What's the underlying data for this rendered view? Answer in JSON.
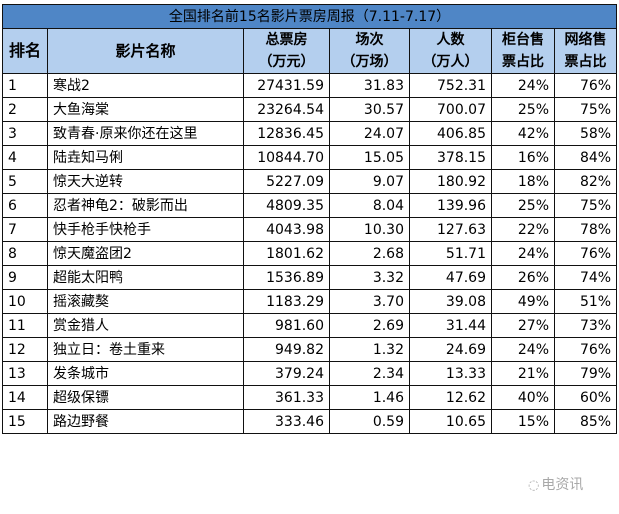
{
  "title": "全国排名前15名影片票房周报（7.11-7.17）",
  "headers": {
    "rank": "排名",
    "name": "影片名称",
    "gross_l1": "总票房",
    "gross_l2": "（万元）",
    "shows_l1": "场次",
    "shows_l2": "（万场）",
    "people_l1": "人数",
    "people_l2": "（万人）",
    "counter_l1": "柜台售",
    "counter_l2": "票占比",
    "online_l1": "网络售",
    "online_l2": "票占比"
  },
  "rows": [
    {
      "rank": "1",
      "name": "寒战2",
      "gross": "27431.59",
      "shows": "31.83",
      "people": "752.31",
      "counter": "24%",
      "online": "76%"
    },
    {
      "rank": "2",
      "name": "大鱼海棠",
      "gross": "23264.54",
      "shows": "30.57",
      "people": "700.07",
      "counter": "25%",
      "online": "75%"
    },
    {
      "rank": "3",
      "name": "致青春·原来你还在这里",
      "gross": "12836.45",
      "shows": "24.07",
      "people": "406.85",
      "counter": "42%",
      "online": "58%"
    },
    {
      "rank": "4",
      "name": "陆垚知马俐",
      "gross": "10844.70",
      "shows": "15.05",
      "people": "378.15",
      "counter": "16%",
      "online": "84%"
    },
    {
      "rank": "5",
      "name": "惊天大逆转",
      "gross": "5227.09",
      "shows": "9.07",
      "people": "180.92",
      "counter": "18%",
      "online": "82%"
    },
    {
      "rank": "6",
      "name": "忍者神龟2：破影而出",
      "gross": "4809.35",
      "shows": "8.04",
      "people": "139.96",
      "counter": "25%",
      "online": "75%"
    },
    {
      "rank": "7",
      "name": "快手枪手快枪手",
      "gross": "4043.98",
      "shows": "10.30",
      "people": "127.63",
      "counter": "22%",
      "online": "78%"
    },
    {
      "rank": "8",
      "name": "惊天魔盗团2",
      "gross": "1801.62",
      "shows": "2.68",
      "people": "51.71",
      "counter": "24%",
      "online": "76%"
    },
    {
      "rank": "9",
      "name": "超能太阳鸭",
      "gross": "1536.89",
      "shows": "3.32",
      "people": "47.69",
      "counter": "26%",
      "online": "74%"
    },
    {
      "rank": "10",
      "name": "摇滚藏獒",
      "gross": "1183.29",
      "shows": "3.70",
      "people": "39.08",
      "counter": "49%",
      "online": "51%"
    },
    {
      "rank": "11",
      "name": "赏金猎人",
      "gross": "981.60",
      "shows": "2.69",
      "people": "31.44",
      "counter": "27%",
      "online": "73%"
    },
    {
      "rank": "12",
      "name": "独立日：卷土重来",
      "gross": "949.82",
      "shows": "1.32",
      "people": "24.69",
      "counter": "24%",
      "online": "76%"
    },
    {
      "rank": "13",
      "name": "发条城市",
      "gross": "379.24",
      "shows": "2.34",
      "people": "13.33",
      "counter": "21%",
      "online": "79%"
    },
    {
      "rank": "14",
      "name": "超级保镖",
      "gross": "361.33",
      "shows": "1.46",
      "people": "12.62",
      "counter": "40%",
      "online": "60%"
    },
    {
      "rank": "15",
      "name": "路边野餐",
      "gross": "333.46",
      "shows": "0.59",
      "people": "10.65",
      "counter": "15%",
      "online": "85%"
    }
  ],
  "watermark": {
    "text": "电资讯",
    "icon": "wechat-icon"
  }
}
